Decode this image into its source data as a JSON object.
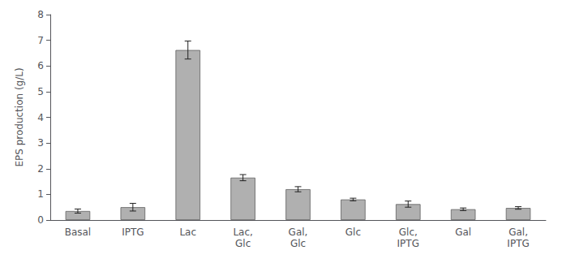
{
  "chart_data": {
    "type": "bar",
    "categories": [
      "Basal",
      "IPTG",
      "Lac",
      "Lac,\nGlc",
      "Gal,\nGlc",
      "Glc",
      "Glc,\nIPTG",
      "Gal",
      "Gal,\nIPTG"
    ],
    "values": [
      0.35,
      0.5,
      6.62,
      1.65,
      1.2,
      0.8,
      0.62,
      0.42,
      0.47
    ],
    "errors": [
      0.08,
      0.15,
      0.35,
      0.12,
      0.1,
      0.05,
      0.12,
      0.05,
      0.05
    ],
    "color": "#b0b0b0",
    "ylabel": "EPS production (g/L)",
    "ylim": [
      0,
      8
    ],
    "yticks": [
      0,
      1,
      2,
      3,
      4,
      5,
      6,
      7,
      8
    ],
    "grid": false
  }
}
